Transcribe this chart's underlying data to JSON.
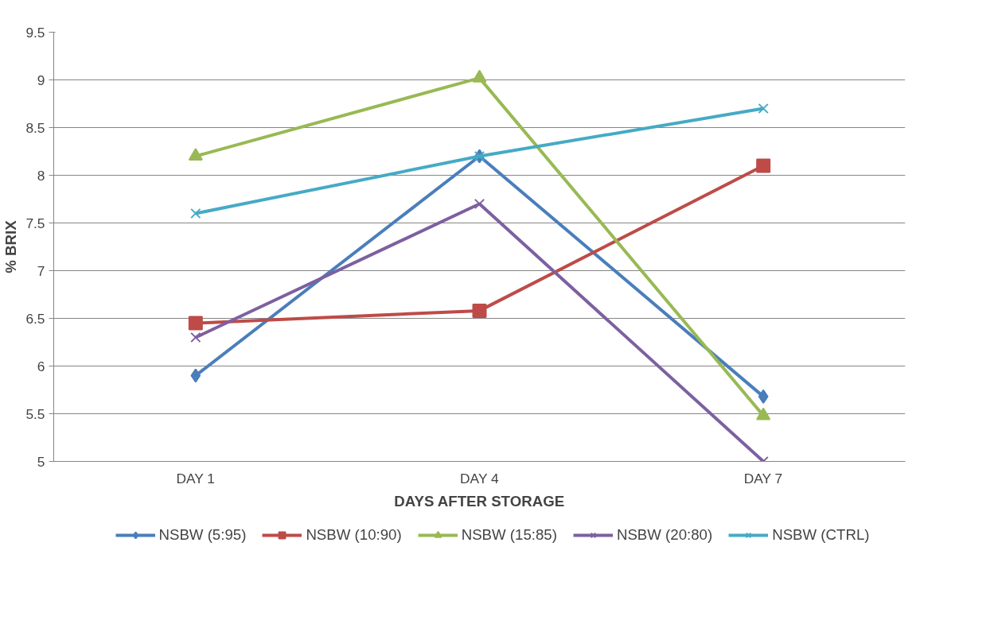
{
  "chart_data": {
    "type": "line",
    "xlabel": "DAYS AFTER STORAGE",
    "ylabel": "% BRIX",
    "categories": [
      "DAY 1",
      "DAY 4",
      "DAY 7"
    ],
    "ylim": [
      5,
      9.5
    ],
    "yticks": [
      5,
      5.5,
      6,
      6.5,
      7,
      7.5,
      8,
      8.5,
      9,
      9.5
    ],
    "grid": "y",
    "legend": "bottom",
    "line_style": "solid",
    "series": [
      {
        "name": "NSBW (5:95)",
        "color": "#4a7ebb",
        "marker": "diamond",
        "values": [
          5.9,
          8.2,
          5.68
        ]
      },
      {
        "name": "NSBW (10:90)",
        "color": "#be4b48",
        "marker": "square",
        "values": [
          6.45,
          6.58,
          8.1
        ]
      },
      {
        "name": "NSBW (15:85)",
        "color": "#98b954",
        "marker": "triangle",
        "values": [
          8.2,
          9.02,
          5.48
        ]
      },
      {
        "name": "NSBW (20:80)",
        "color": "#7d60a0",
        "marker": "cross",
        "values": [
          6.3,
          7.7,
          5.0
        ]
      },
      {
        "name": "NSBW (CTRL)",
        "color": "#46aac5",
        "marker": "cross",
        "values": [
          7.6,
          8.2,
          8.7
        ]
      }
    ]
  }
}
